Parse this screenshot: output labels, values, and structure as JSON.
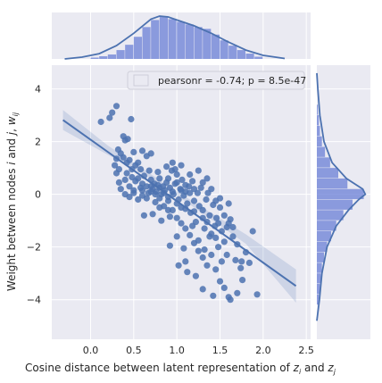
{
  "chart_data": {
    "type": "scatter",
    "title": "",
    "xlabel": "Cosine distance between latent representation of z_i and z_j",
    "xlabel_parts": {
      "prefix": "Cosine distance between latent representation of ",
      "var1": "z",
      "sub1": "i",
      "mid": " and ",
      "var2": "z",
      "sub2": "j"
    },
    "ylabel": "Weight between nodes i and j, w_ij",
    "ylabel_parts": {
      "prefix": "Weight between nodes ",
      "var1": "i",
      "mid": " and ",
      "var2": "j",
      "sep": ", ",
      "var3": "w",
      "sub3": "ij"
    },
    "xlim": [
      -0.45,
      2.55
    ],
    "ylim": [
      -5.5,
      4.9
    ],
    "xticks": [
      0.0,
      0.5,
      1.0,
      1.5,
      2.0,
      2.5
    ],
    "xtick_labels": [
      "0.0",
      "0.5",
      "1.0",
      "1.5",
      "2.0",
      "2.5"
    ],
    "yticks": [
      -4,
      -2,
      0,
      2,
      4
    ],
    "ytick_labels": [
      "−4",
      "−2",
      "0",
      "2",
      "4"
    ],
    "grid": true,
    "legend": {
      "text": "pearsonr = -0.74; p = 8.5e-47",
      "placement": "top-right"
    },
    "colors": {
      "points": "#4c72b0",
      "line": "#4c72b0",
      "background": "#eaeaf2",
      "bars": "#6a7fd6",
      "kde": "#4c72b0"
    },
    "regression": {
      "x": [
        -0.32,
        2.38
      ],
      "y": [
        2.82,
        -3.48
      ]
    },
    "confidence_band": {
      "x": [
        -0.32,
        0.2,
        0.6,
        1.0,
        1.4,
        1.8,
        2.38
      ],
      "upper": [
        3.2,
        1.85,
        0.98,
        0.11,
        -0.71,
        -1.52,
        -2.85
      ],
      "lower": [
        2.44,
        1.5,
        0.8,
        -0.05,
        -0.95,
        -1.88,
        -4.11
      ]
    },
    "points": [
      [
        0.12,
        2.75
      ],
      [
        0.25,
        3.1
      ],
      [
        0.3,
        3.35
      ],
      [
        0.22,
        2.9
      ],
      [
        0.47,
        2.85
      ],
      [
        0.38,
        2.2
      ],
      [
        0.4,
        2.05
      ],
      [
        0.43,
        2.1
      ],
      [
        0.3,
        1.35
      ],
      [
        0.33,
        0.95
      ],
      [
        0.35,
        1.55
      ],
      [
        0.28,
        1.1
      ],
      [
        0.45,
        1.3
      ],
      [
        0.5,
        1.6
      ],
      [
        0.55,
        1.2
      ],
      [
        0.6,
        1.65
      ],
      [
        0.65,
        1.45
      ],
      [
        0.7,
        1.55
      ],
      [
        0.3,
        0.8
      ],
      [
        0.33,
        0.45
      ],
      [
        0.4,
        0.55
      ],
      [
        0.42,
        0.8
      ],
      [
        0.45,
        0.3
      ],
      [
        0.48,
        0.65
      ],
      [
        0.5,
        0.15
      ],
      [
        0.52,
        0.5
      ],
      [
        0.55,
        0.6
      ],
      [
        0.58,
        0.25
      ],
      [
        0.6,
        0.4
      ],
      [
        0.62,
        0.7
      ],
      [
        0.65,
        0.3
      ],
      [
        0.67,
        0.05
      ],
      [
        0.7,
        0.55
      ],
      [
        0.72,
        0.2
      ],
      [
        0.74,
        0.4
      ],
      [
        0.76,
        0.1
      ],
      [
        0.78,
        0.35
      ],
      [
        0.8,
        0.6
      ],
      [
        0.82,
        0.0
      ],
      [
        0.84,
        0.3
      ],
      [
        0.86,
        0.15
      ],
      [
        0.88,
        0.45
      ],
      [
        0.9,
        -0.1
      ],
      [
        0.92,
        0.25
      ],
      [
        0.94,
        0.9
      ],
      [
        0.95,
        1.2
      ],
      [
        0.96,
        0.0
      ],
      [
        0.98,
        0.4
      ],
      [
        1.0,
        0.75
      ],
      [
        1.02,
        -0.2
      ],
      [
        1.04,
        0.2
      ],
      [
        1.05,
        -0.5
      ],
      [
        1.06,
        0.55
      ],
      [
        1.08,
        -0.05
      ],
      [
        1.1,
        0.1
      ],
      [
        1.12,
        -0.35
      ],
      [
        1.14,
        0.3
      ],
      [
        1.16,
        -0.7
      ],
      [
        1.18,
        0.5
      ],
      [
        1.2,
        -0.25
      ],
      [
        1.22,
        -1.05
      ],
      [
        1.24,
        0.05
      ],
      [
        1.26,
        -0.45
      ],
      [
        1.28,
        0.25
      ],
      [
        1.3,
        -0.6
      ],
      [
        1.32,
        -1.3
      ],
      [
        1.34,
        -0.2
      ],
      [
        1.36,
        0.05
      ],
      [
        1.38,
        -0.8
      ],
      [
        1.4,
        -1.5
      ],
      [
        1.42,
        -0.4
      ],
      [
        1.44,
        -1.2
      ],
      [
        1.46,
        -0.9
      ],
      [
        1.48,
        -2.0
      ],
      [
        1.5,
        -0.5
      ],
      [
        1.52,
        -1.4
      ],
      [
        1.55,
        -0.8
      ],
      [
        1.58,
        -2.3
      ],
      [
        1.6,
        -1.1
      ],
      [
        1.62,
        -0.95
      ],
      [
        1.65,
        -1.6
      ],
      [
        1.68,
        -2.5
      ],
      [
        1.7,
        -1.9
      ],
      [
        1.74,
        -2.8
      ],
      [
        1.76,
        -3.25
      ],
      [
        1.8,
        -2.2
      ],
      [
        1.84,
        -2.6
      ],
      [
        1.88,
        -1.4
      ],
      [
        1.93,
        -3.8
      ],
      [
        0.35,
        0.2
      ],
      [
        0.4,
        0.0
      ],
      [
        0.45,
        -0.1
      ],
      [
        0.5,
        0.05
      ],
      [
        0.55,
        -0.2
      ],
      [
        0.6,
        0.15
      ],
      [
        0.65,
        -0.15
      ],
      [
        0.7,
        0.1
      ],
      [
        0.75,
        -0.3
      ],
      [
        0.8,
        -0.15
      ],
      [
        0.85,
        -0.45
      ],
      [
        0.9,
        -0.25
      ],
      [
        0.95,
        -0.6
      ],
      [
        1.0,
        -0.9
      ],
      [
        1.05,
        -1.1
      ],
      [
        1.1,
        -1.3
      ],
      [
        1.15,
        -1.55
      ],
      [
        1.2,
        -1.85
      ],
      [
        1.25,
        -2.15
      ],
      [
        1.3,
        -2.4
      ],
      [
        1.35,
        -2.7
      ],
      [
        1.4,
        -2.3
      ],
      [
        1.45,
        -2.85
      ],
      [
        1.5,
        -3.3
      ],
      [
        1.55,
        -3.55
      ],
      [
        1.3,
        -3.6
      ],
      [
        1.6,
        -3.9
      ],
      [
        1.62,
        -4.0
      ],
      [
        1.7,
        -3.75
      ],
      [
        1.42,
        -3.85
      ],
      [
        0.62,
        -0.8
      ],
      [
        0.72,
        -0.75
      ],
      [
        0.82,
        -1.0
      ],
      [
        0.92,
        -0.85
      ],
      [
        1.0,
        -1.6
      ],
      [
        1.1,
        -2.55
      ],
      [
        1.18,
        -1.2
      ],
      [
        1.25,
        -1.75
      ],
      [
        1.08,
        -2.05
      ],
      [
        0.92,
        -1.95
      ],
      [
        1.02,
        -2.7
      ],
      [
        1.12,
        -2.95
      ],
      [
        1.22,
        -3.1
      ],
      [
        1.32,
        -2.1
      ],
      [
        1.45,
        -1.65
      ],
      [
        1.52,
        -2.55
      ],
      [
        1.35,
        -1.05
      ],
      [
        1.58,
        -1.25
      ],
      [
        1.15,
        0.75
      ],
      [
        1.05,
        1.1
      ],
      [
        0.98,
        0.95
      ],
      [
        0.88,
        1.05
      ],
      [
        0.78,
        0.85
      ],
      [
        0.68,
        0.9
      ],
      [
        1.3,
        0.45
      ],
      [
        1.4,
        0.2
      ],
      [
        1.5,
        -0.15
      ],
      [
        1.6,
        -0.35
      ],
      [
        1.35,
        0.6
      ],
      [
        1.25,
        0.9
      ],
      [
        0.58,
        0.95
      ],
      [
        0.52,
        1.1
      ],
      [
        0.48,
        0.95
      ],
      [
        0.42,
        1.2
      ],
      [
        0.38,
        1.4
      ],
      [
        0.32,
        1.7
      ],
      [
        0.75,
        0.0
      ],
      [
        0.85,
        0.05
      ],
      [
        0.95,
        0.1
      ],
      [
        1.05,
        0.15
      ],
      [
        1.15,
        0.05
      ],
      [
        1.2,
        0.2
      ],
      [
        0.8,
        -0.5
      ],
      [
        0.9,
        -0.6
      ],
      [
        1.0,
        -0.35
      ],
      [
        1.1,
        -0.55
      ],
      [
        1.2,
        -0.65
      ],
      [
        1.3,
        -0.9
      ],
      [
        0.7,
        0.3
      ],
      [
        0.8,
        0.25
      ],
      [
        0.9,
        0.6
      ],
      [
        1.0,
        0.45
      ],
      [
        1.1,
        0.35
      ],
      [
        0.6,
        -0.05
      ],
      [
        1.45,
        -0.25
      ],
      [
        1.55,
        -1.8
      ],
      [
        1.65,
        -1.25
      ],
      [
        1.75,
        -2.55
      ],
      [
        1.48,
        -1.1
      ],
      [
        1.38,
        -1.6
      ]
    ],
    "x_marginal": {
      "bin_edges": [
        0.0,
        0.1,
        0.2,
        0.3,
        0.4,
        0.5,
        0.6,
        0.7,
        0.8,
        0.9,
        1.0,
        1.1,
        1.2,
        1.3,
        1.4,
        1.5,
        1.6,
        1.7,
        1.8,
        1.9,
        2.0
      ],
      "bar_heights": [
        0.03,
        0.06,
        0.1,
        0.2,
        0.32,
        0.5,
        0.72,
        0.88,
        0.97,
        0.9,
        0.84,
        0.78,
        0.72,
        0.68,
        0.55,
        0.42,
        0.3,
        0.2,
        0.12,
        0.05
      ],
      "kde_x": [
        -0.3,
        -0.1,
        0.1,
        0.3,
        0.5,
        0.7,
        0.8,
        0.9,
        1.0,
        1.2,
        1.4,
        1.6,
        1.8,
        2.0,
        2.25
      ],
      "kde_y": [
        0.0,
        0.04,
        0.12,
        0.3,
        0.58,
        0.9,
        0.97,
        0.95,
        0.88,
        0.75,
        0.58,
        0.38,
        0.2,
        0.08,
        0.01
      ]
    },
    "y_marginal": {
      "bin_edges": [
        -4.2,
        -3.8,
        -3.4,
        -3.0,
        -2.6,
        -2.2,
        -1.8,
        -1.4,
        -1.0,
        -0.6,
        -0.2,
        0.2,
        0.6,
        1.0,
        1.4,
        1.8,
        2.2,
        2.6,
        3.0,
        3.4
      ],
      "bar_widths": [
        0.04,
        0.06,
        0.08,
        0.1,
        0.14,
        0.2,
        0.28,
        0.38,
        0.52,
        0.7,
        0.92,
        0.6,
        0.42,
        0.26,
        0.16,
        0.1,
        0.06,
        0.04,
        0.02
      ],
      "kde_y": [
        -4.8,
        -4.0,
        -3.0,
        -2.0,
        -1.2,
        -0.6,
        -0.2,
        0.0,
        0.2,
        0.6,
        1.2,
        2.0,
        3.0,
        4.0,
        4.6
      ],
      "kde_x": [
        0.0,
        0.05,
        0.1,
        0.2,
        0.38,
        0.62,
        0.82,
        0.95,
        0.9,
        0.58,
        0.3,
        0.14,
        0.06,
        0.02,
        0.0
      ]
    }
  }
}
